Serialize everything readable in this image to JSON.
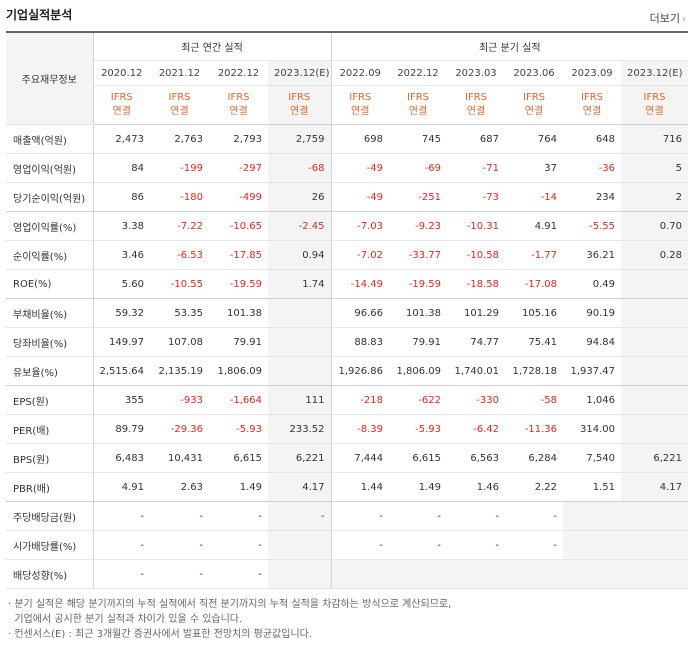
{
  "section_title": "기업실적분석",
  "more_label": "더보기",
  "header_label": "주요재무정보",
  "annual_group": "최근 연간 실적",
  "quarter_group": "최근 분기 실적",
  "periods": [
    "2020.12",
    "2021.12",
    "2022.12",
    "2023.12(E)",
    "2022.09",
    "2022.12",
    "2023.03",
    "2023.06",
    "2023.09",
    "2023.12(E)"
  ],
  "standard_top": "IFRS",
  "standard_bottom": "연결",
  "rows": [
    {
      "label": "매출액(억원)",
      "values": [
        "2,473",
        "2,763",
        "2,793",
        "2,759",
        "698",
        "745",
        "687",
        "764",
        "648",
        "716"
      ]
    },
    {
      "label": "영업이익(억원)",
      "values": [
        "84",
        "-199",
        "-297",
        "-68",
        "-49",
        "-69",
        "-71",
        "37",
        "-36",
        "5"
      ]
    },
    {
      "label": "당기순이익(억원)",
      "values": [
        "86",
        "-180",
        "-499",
        "26",
        "-49",
        "-251",
        "-73",
        "-14",
        "234",
        "2"
      ]
    },
    {
      "label": "영업이익률(%)",
      "values": [
        "3.38",
        "-7.22",
        "-10.65",
        "-2.45",
        "-7.03",
        "-9.23",
        "-10.31",
        "4.91",
        "-5.55",
        "0.70"
      ]
    },
    {
      "label": "순이익률(%)",
      "values": [
        "3.46",
        "-6.53",
        "-17.85",
        "0.94",
        "-7.02",
        "-33.77",
        "-10.58",
        "-1.77",
        "36.21",
        "0.28"
      ]
    },
    {
      "label": "ROE(%)",
      "values": [
        "5.60",
        "-10.55",
        "-19.59",
        "1.74",
        "-14.49",
        "-19.59",
        "-18.58",
        "-17.08",
        "0.49",
        ""
      ]
    },
    {
      "label": "부채비율(%)",
      "values": [
        "59.32",
        "53.35",
        "101.38",
        "",
        "96.66",
        "101.38",
        "101.29",
        "105.16",
        "90.19",
        ""
      ]
    },
    {
      "label": "당좌비율(%)",
      "values": [
        "149.97",
        "107.08",
        "79.91",
        "",
        "88.83",
        "79.91",
        "74.77",
        "75.41",
        "94.84",
        ""
      ]
    },
    {
      "label": "유보율(%)",
      "values": [
        "2,515.64",
        "2,135.19",
        "1,806.09",
        "",
        "1,926.86",
        "1,806.09",
        "1,740.01",
        "1,728.18",
        "1,937.47",
        ""
      ]
    },
    {
      "label": "EPS(원)",
      "values": [
        "355",
        "-933",
        "-1,664",
        "111",
        "-218",
        "-622",
        "-330",
        "-58",
        "1,046",
        ""
      ]
    },
    {
      "label": "PER(배)",
      "values": [
        "89.79",
        "-29.36",
        "-5.93",
        "233.52",
        "-8.39",
        "-5.93",
        "-6.42",
        "-11.36",
        "314.00",
        ""
      ]
    },
    {
      "label": "BPS(원)",
      "values": [
        "6,483",
        "10,431",
        "6,615",
        "6,221",
        "7,444",
        "6,615",
        "6,563",
        "6,284",
        "7,540",
        "6,221"
      ]
    },
    {
      "label": "PBR(배)",
      "values": [
        "4.91",
        "2.63",
        "1.49",
        "4.17",
        "1.44",
        "1.49",
        "1.46",
        "2.22",
        "1.51",
        "4.17"
      ]
    },
    {
      "label": "주당배당금(원)",
      "values": [
        "-",
        "-",
        "-",
        "-",
        "-",
        "-",
        "-",
        "-",
        "",
        ""
      ]
    },
    {
      "label": "시가배당률(%)",
      "values": [
        "-",
        "-",
        "-",
        "",
        "-",
        "-",
        "-",
        "-",
        "",
        ""
      ]
    },
    {
      "label": "배당성향(%)",
      "values": [
        "-",
        "-",
        "-",
        "",
        "",
        "",
        "",
        "",
        "",
        ""
      ]
    }
  ],
  "footnotes": [
    "· 분기 실적은 해당 분기까지의 누적 실적에서 직전 분기까지의 누적 실적을 차감하는 방식으로 계산되므로,",
    "  기업에서 공시한 분기 실적과 차이가 있을 수 있습니다.",
    "· 컨센서스(E) : 최근 3개월간 증권사에서 발표한 전망치의 평균값입니다."
  ]
}
